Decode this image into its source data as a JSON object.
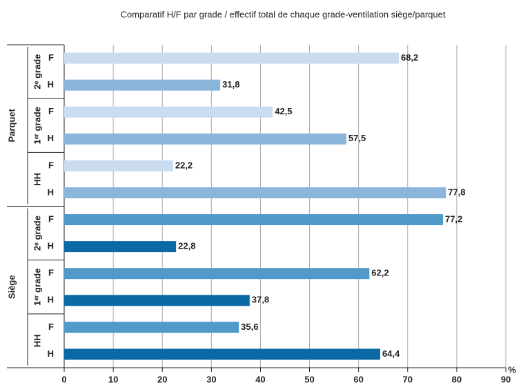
{
  "chart_data": {
    "type": "bar",
    "title": "Comparatif H/F par grade / effectif total de chaque grade-ventilation siège/parquet",
    "x_label": "%",
    "xlim": [
      0,
      90
    ],
    "xticks": [
      0,
      10,
      20,
      30,
      40,
      50,
      60,
      70,
      80,
      90
    ],
    "grid": true,
    "groups": [
      {
        "name": "Parquet",
        "colors": [
          "#cadcef",
          "#8bb5da"
        ],
        "subgroups": [
          {
            "name": "2ᵉ grade",
            "categories": [
              "F",
              "H"
            ],
            "values": [
              68.2,
              31.8
            ],
            "value_labels": [
              "68,2",
              "31,8"
            ]
          },
          {
            "name": "1ᵉʳ grade",
            "categories": [
              "F",
              "H"
            ],
            "values": [
              42.5,
              57.5
            ],
            "value_labels": [
              "42,5",
              "57,5"
            ]
          },
          {
            "name": "HH",
            "categories": [
              "F",
              "H"
            ],
            "values": [
              22.2,
              77.8
            ],
            "value_labels": [
              "22,2",
              "77,8"
            ]
          }
        ]
      },
      {
        "name": "Siège",
        "colors": [
          "#509aca",
          "#0b6aa6"
        ],
        "subgroups": [
          {
            "name": "2ᵉ grade",
            "categories": [
              "F",
              "H"
            ],
            "values": [
              77.2,
              22.8
            ],
            "value_labels": [
              "77,2",
              "22,8"
            ]
          },
          {
            "name": "1ᵉʳ grade",
            "categories": [
              "F",
              "H"
            ],
            "values": [
              62.2,
              37.8
            ],
            "value_labels": [
              "62,2",
              "37,8"
            ]
          },
          {
            "name": "HH",
            "categories": [
              "F",
              "H"
            ],
            "values": [
              35.6,
              64.4
            ],
            "value_labels": [
              "35,6",
              "64,4"
            ]
          }
        ]
      }
    ]
  }
}
